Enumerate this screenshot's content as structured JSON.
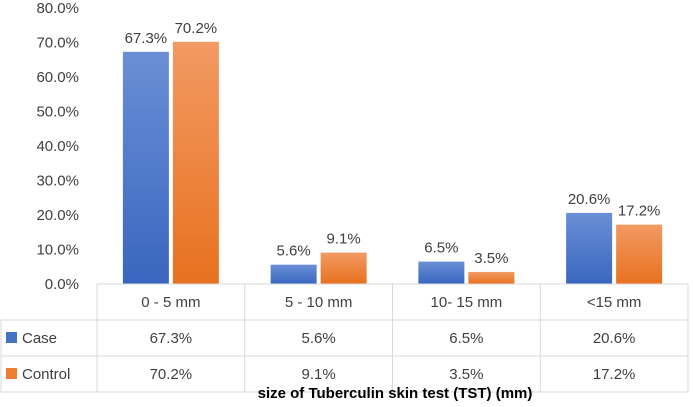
{
  "chart_data": {
    "type": "bar",
    "title": "",
    "xlabel": "size of Tuberculin skin test (TST) (mm)",
    "ylabel": "",
    "ylim": [
      0,
      80
    ],
    "ytick_step": 10,
    "ytick_labels": [
      "0.0%",
      "10.0%",
      "20.0%",
      "30.0%",
      "40.0%",
      "50.0%",
      "60.0%",
      "70.0%",
      "80.0%"
    ],
    "categories": [
      "0 - 5 mm",
      "5 - 10 mm",
      "10- 15 mm",
      "<15 mm"
    ],
    "series": [
      {
        "name": "Case",
        "color": "#4472C4",
        "values": [
          67.3,
          5.6,
          6.5,
          20.6
        ],
        "labels": [
          "67.3%",
          "5.6%",
          "6.5%",
          "20.6%"
        ]
      },
      {
        "name": "Control",
        "color": "#ED7D31",
        "values": [
          70.2,
          9.1,
          3.5,
          17.2
        ],
        "labels": [
          "70.2%",
          "9.1%",
          "3.5%",
          "17.2%"
        ]
      }
    ],
    "grid": false,
    "data_table": true
  }
}
